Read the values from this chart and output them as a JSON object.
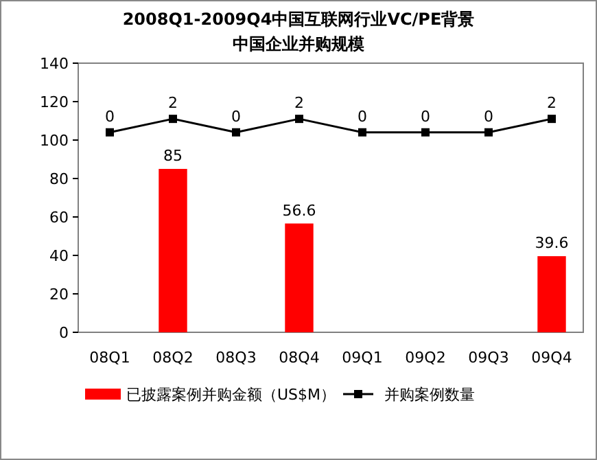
{
  "chart_data": {
    "type": "bar",
    "title": "2008Q1-2009Q4中国互联网行业VC/PE背景",
    "subtitle": "中国企业并购规模",
    "categories": [
      "08Q1",
      "08Q2",
      "08Q3",
      "08Q4",
      "09Q1",
      "09Q2",
      "09Q3",
      "09Q4"
    ],
    "series": [
      {
        "name": "已披露案例并购金额（US$M）",
        "color": "#ff0000",
        "values": [
          0,
          85,
          0,
          56.6,
          0,
          0,
          0,
          39.6
        ],
        "value_labels": [
          null,
          "85",
          null,
          "56.6",
          null,
          null,
          null,
          "39.6"
        ]
      },
      {
        "name": "并购案例数量",
        "type": "line",
        "axis": "y2",
        "color": "#000000",
        "marker": "square",
        "values": [
          0,
          2,
          0,
          2,
          0,
          0,
          0,
          2
        ],
        "value_labels": [
          "0",
          "2",
          "0",
          "2",
          "0",
          "0",
          "0",
          "2"
        ]
      }
    ],
    "ylim": [
      0,
      140
    ],
    "yticks": [
      0,
      20,
      40,
      60,
      80,
      100,
      120,
      140
    ],
    "tick_labels": "x y",
    "grid": false,
    "legend": "bottom"
  }
}
